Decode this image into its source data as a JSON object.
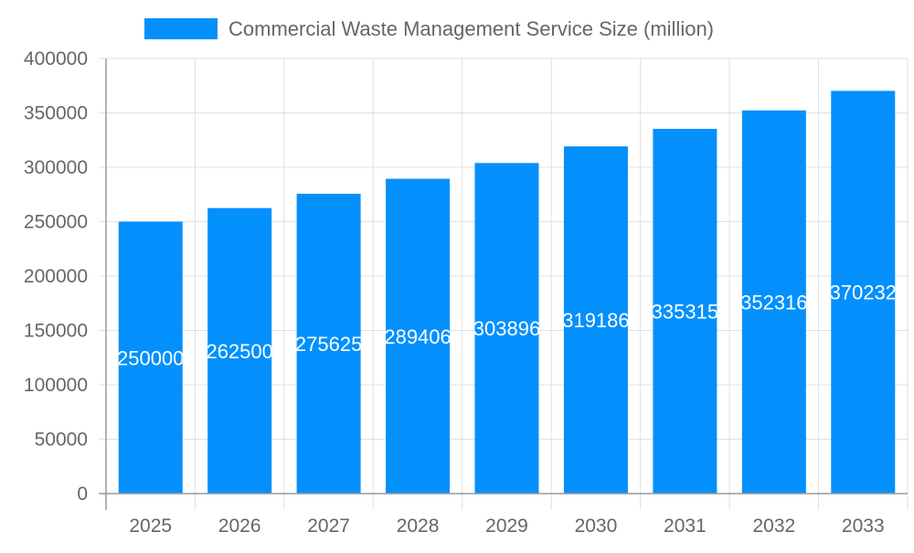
{
  "chart_data": {
    "type": "bar",
    "categories": [
      "2025",
      "2026",
      "2027",
      "2028",
      "2029",
      "2030",
      "2031",
      "2032",
      "2033"
    ],
    "series": [
      {
        "name": "Commercial Waste Management Service Size (million)",
        "values": [
          250000,
          262500,
          275625,
          289406,
          303896,
          319186,
          335315,
          352316,
          370232
        ]
      }
    ],
    "ylim": [
      0,
      400000
    ],
    "yticks": [
      0,
      50000,
      100000,
      150000,
      200000,
      250000,
      300000,
      350000,
      400000
    ],
    "grid": true,
    "legend": "top",
    "data_labels": true,
    "colors": {
      "bar": "#0390fc",
      "grid": "#e0e0e0",
      "axis": "#999999",
      "text": "#666666",
      "label": "#ffffff"
    }
  }
}
